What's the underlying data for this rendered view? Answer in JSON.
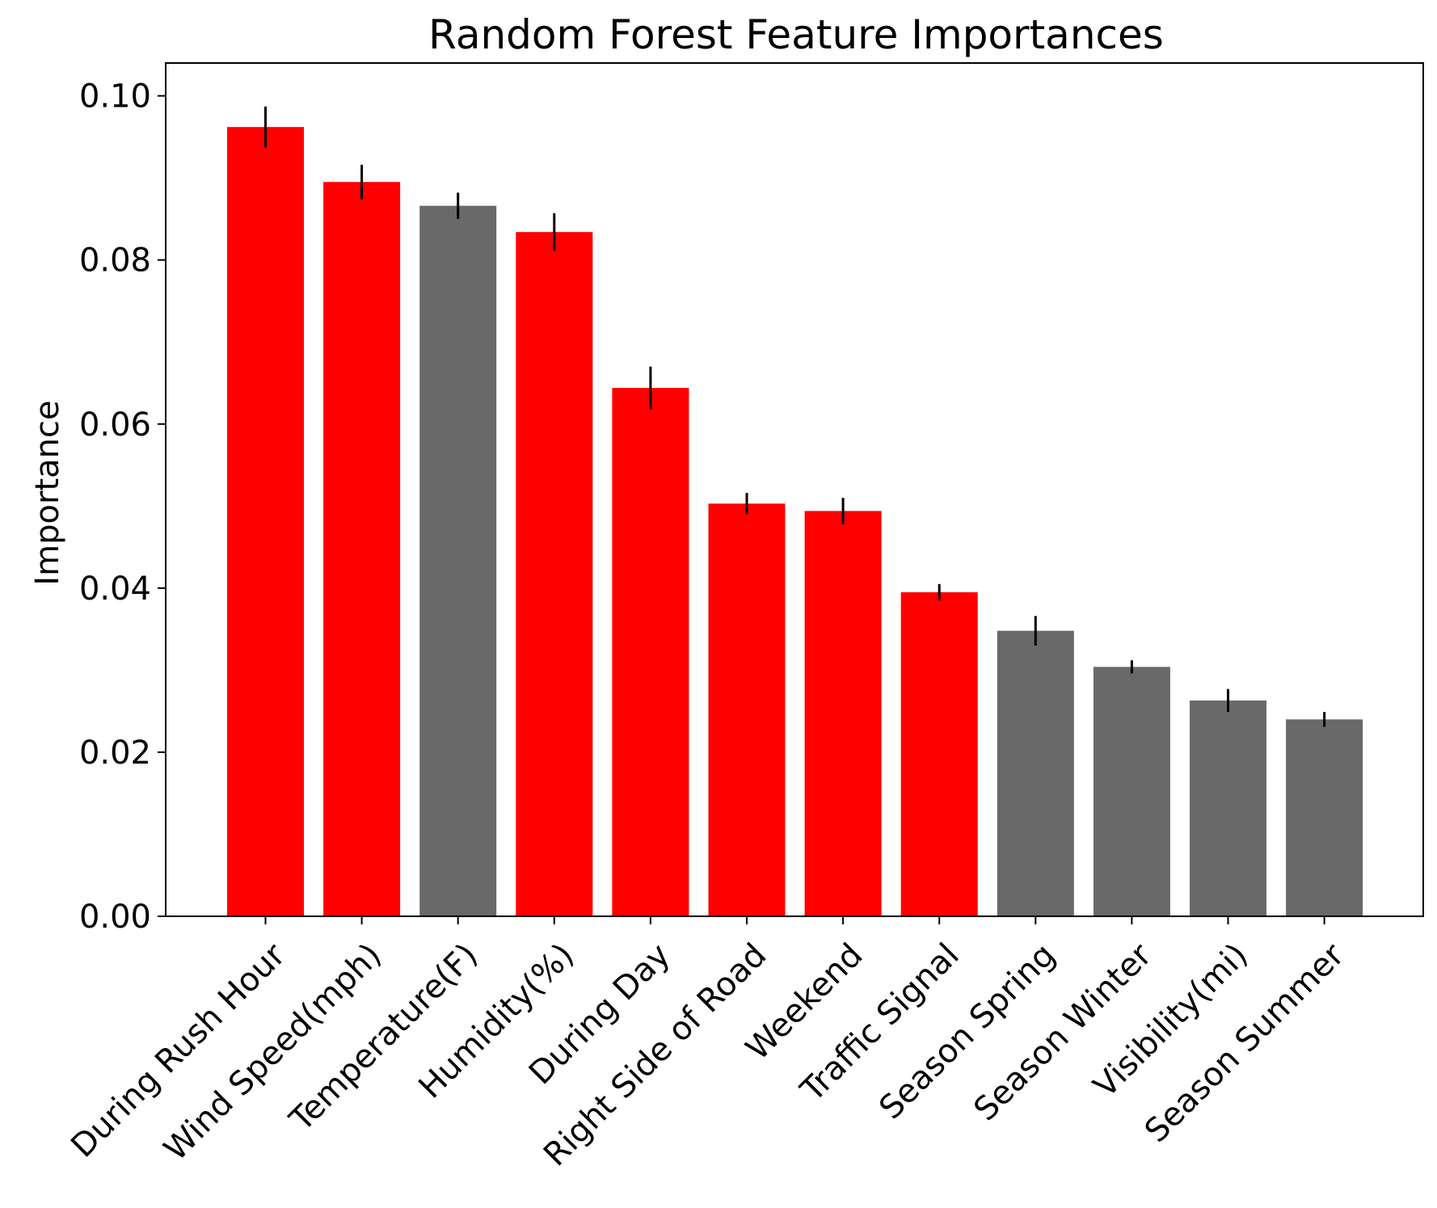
{
  "chart_data": {
    "type": "bar",
    "title": "Random Forest Feature Importances",
    "xlabel": "",
    "ylabel": "Importance",
    "ylim": [
      0,
      0.104
    ],
    "yticks": [
      "0.00",
      "0.02",
      "0.04",
      "0.06",
      "0.08",
      "0.10"
    ],
    "ytick_values": [
      0.0,
      0.02,
      0.04,
      0.06,
      0.08,
      0.1
    ],
    "categories": [
      "During Rush Hour",
      "Wind Speed(mph)",
      "Temperature(F)",
      "Humidity(%)",
      "During Day",
      "Right Side of Road",
      "Weekend",
      "Traffic Signal",
      "Season Spring",
      "Season Winter",
      "Visibility(mi)",
      "Season Summer"
    ],
    "values": [
      0.0962,
      0.0895,
      0.0866,
      0.0834,
      0.0644,
      0.0503,
      0.0494,
      0.0395,
      0.0348,
      0.0304,
      0.0263,
      0.024
    ],
    "errors": [
      0.0025,
      0.0021,
      0.0016,
      0.0023,
      0.0026,
      0.0013,
      0.0016,
      0.001,
      0.0018,
      0.0008,
      0.0014,
      0.0009
    ],
    "bar_colors": [
      "#ff0000",
      "#ff0000",
      "#696969",
      "#ff0000",
      "#ff0000",
      "#ff0000",
      "#ff0000",
      "#ff0000",
      "#696969",
      "#696969",
      "#696969",
      "#696969"
    ],
    "error_color": "#000000",
    "grid": false,
    "legend": "none"
  }
}
